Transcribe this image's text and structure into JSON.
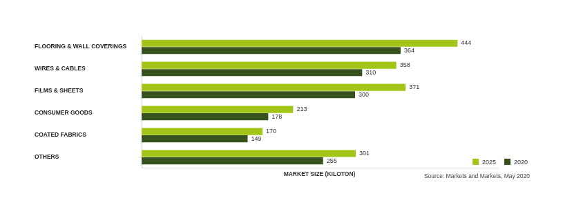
{
  "chart_data": {
    "type": "bar",
    "orientation": "horizontal",
    "categories": [
      "FLOORING & WALL COVERINGS",
      "WIRES & CABLES",
      "FILMS & SHEETS",
      "CONSUMER GOODS",
      "COATED FABRICS",
      "OTHERS"
    ],
    "series": [
      {
        "name": "2025",
        "color": "#a2c617",
        "values": [
          444,
          358,
          371,
          213,
          170,
          301
        ]
      },
      {
        "name": "2020",
        "color": "#38521f",
        "values": [
          364,
          310,
          300,
          178,
          149,
          255
        ]
      }
    ],
    "xlabel": "MARKET SIZE (KILOTON)",
    "xlim": [
      0,
      500
    ],
    "grid": false,
    "legend": "lower right",
    "data_labels": true,
    "tick_labels": "y",
    "annotations": [
      "Source: Markets and Markets, May 2020"
    ]
  }
}
